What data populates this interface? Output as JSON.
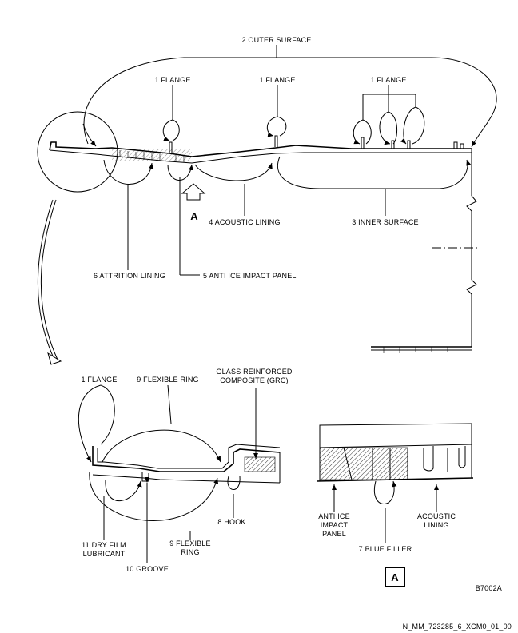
{
  "labels": {
    "outer_surface": "2 OUTER SURFACE",
    "flange_1": "1 FLANGE",
    "flange_2": "1 FLANGE",
    "flange_3": "1 FLANGE",
    "acoustic_lining": "4 ACOUSTIC LINING",
    "inner_surface": "3 INNER SURFACE",
    "view_a_arrow": "A",
    "attrition_lining": "6 ATTRITION LINING",
    "anti_ice_impact_panel": "5 ANTI ICE IMPACT PANEL",
    "detail_flange": "1 FLANGE",
    "flexible_ring_top": "9 FLEXIBLE RING",
    "grc_line1": "GLASS REINFORCED",
    "grc_line2": "COMPOSITE (GRC)",
    "hook": "8 HOOK",
    "flexible_ring_bottom_line1": "9 FLEXIBLE",
    "flexible_ring_bottom_line2": "RING",
    "dry_film_line1": "11 DRY FILM",
    "dry_film_line2": "LUBRICANT",
    "groove": "10 GROOVE",
    "view_anti_ice_line1": "ANTI ICE",
    "view_anti_ice_line2": "IMPACT",
    "view_anti_ice_line3": "PANEL",
    "view_acoustic_line1": "ACOUSTIC",
    "view_acoustic_line2": "LINING",
    "blue_filler": "7 BLUE FILLER",
    "view_box_letter": "A",
    "figure_code": "B7002A",
    "file_ref": "N_MM_723285_6_XCM0_01_00"
  }
}
